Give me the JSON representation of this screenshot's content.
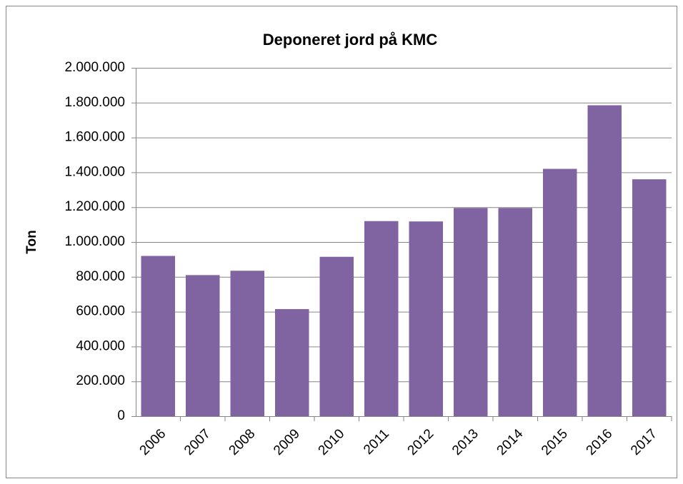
{
  "chart_data": {
    "type": "bar",
    "title": "Deponeret jord på KMC",
    "y_label": "Ton",
    "categories": [
      "2006",
      "2007",
      "2008",
      "2009",
      "2010",
      "2011",
      "2012",
      "2013",
      "2014",
      "2015",
      "2016",
      "2017"
    ],
    "values": [
      920000,
      810000,
      835000,
      615000,
      915000,
      1120000,
      1118000,
      1195000,
      1195000,
      1420000,
      1785000,
      1360000
    ],
    "color": "#8064a2",
    "ylim": [
      0,
      2000000
    ],
    "yticks": [
      0,
      {
        "value": 200000,
        "label": "200.000"
      },
      {
        "value": 400000,
        "label": "400.000"
      },
      {
        "value": 600000,
        "label": "600.000"
      },
      {
        "value": 800000,
        "label": "800.000"
      },
      {
        "value": 1000000,
        "label": "1.000.000"
      },
      {
        "value": 1200000,
        "label": "1.200.000"
      },
      {
        "value": 1400000,
        "label": "1.400.000"
      },
      {
        "value": 1600000,
        "label": "1.600.000"
      },
      {
        "value": 1800000,
        "label": "1.800.000"
      },
      {
        "value": 2000000,
        "label": "2.000.000"
      }
    ],
    "grid": true
  }
}
